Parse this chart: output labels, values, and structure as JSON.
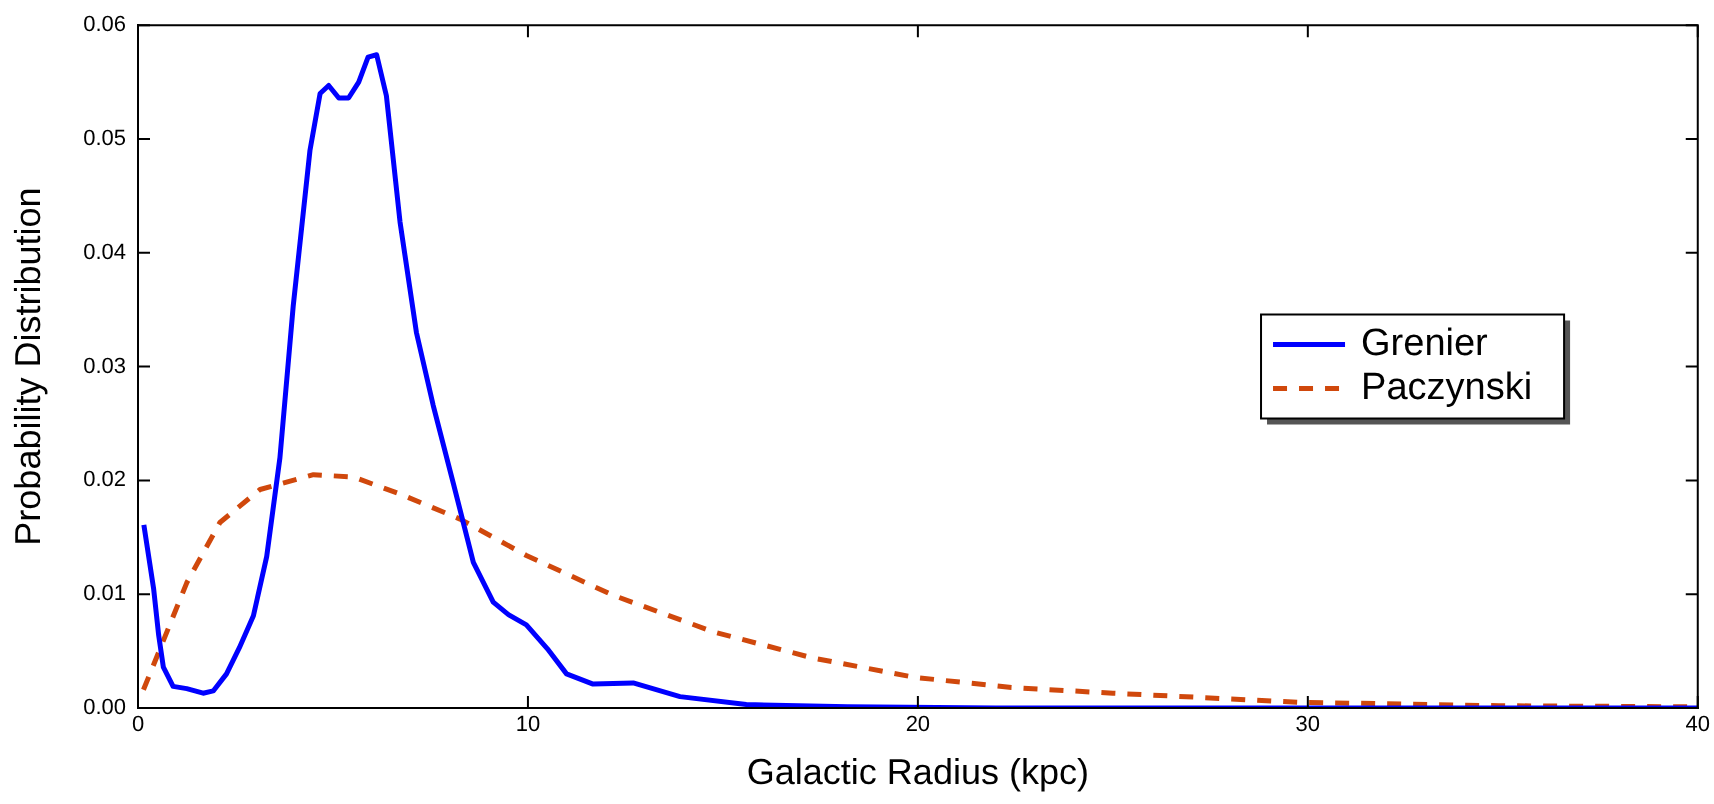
{
  "chart_data": {
    "type": "line",
    "xlabel": "Galactic Radius (kpc)",
    "ylabel": "Probability Distribution",
    "xlim": [
      0,
      40
    ],
    "xticks": [
      0,
      10,
      20,
      30,
      40
    ],
    "ylim": [
      0,
      0.06
    ],
    "yticks": [
      {
        "value": 0,
        "label": "0.00"
      },
      {
        "value": 0.01,
        "label": "0.01"
      },
      {
        "value": 0.02,
        "label": "0.02"
      },
      {
        "value": 0.03,
        "label": "0.03"
      },
      {
        "value": 0.04,
        "label": "0.04"
      },
      {
        "value": 0.05,
        "label": "0.05"
      },
      {
        "value": 0.06,
        "label": "0.06"
      }
    ],
    "grid": false,
    "legend": "right",
    "marker": "none",
    "series": [
      {
        "name": "Grenier",
        "color": "#0000ff",
        "line_style": "solid",
        "x": [
          0.15,
          0.4,
          0.53,
          0.65,
          0.9,
          1.25,
          1.67,
          1.93,
          2.27,
          2.6,
          2.96,
          3.3,
          3.64,
          3.98,
          4.41,
          4.67,
          4.89,
          5.15,
          5.4,
          5.66,
          5.9,
          6.12,
          6.37,
          6.72,
          7.14,
          7.57,
          8.09,
          8.6,
          9.11,
          9.5,
          9.96,
          10.5,
          10.99,
          11.67,
          12.7,
          13.9,
          15.6,
          18.2,
          22,
          30,
          40
        ],
        "values": [
          0.0161,
          0.0105,
          0.0064,
          0.0036,
          0.0019,
          0.0017,
          0.0013,
          0.0015,
          0.003,
          0.0053,
          0.0081,
          0.0133,
          0.022,
          0.0353,
          0.049,
          0.054,
          0.0547,
          0.0536,
          0.0536,
          0.055,
          0.0572,
          0.0574,
          0.0538,
          0.0427,
          0.033,
          0.0266,
          0.0197,
          0.0128,
          0.0093,
          0.0082,
          0.0073,
          0.0052,
          0.003,
          0.0021,
          0.0022,
          0.001,
          0.0003,
          0.0001,
          0,
          0,
          0
        ]
      },
      {
        "name": "Paczynski",
        "color": "#d0480c",
        "line_style": "dashed",
        "x": [
          0.14,
          1.25,
          2.1,
          3.13,
          4.5,
          5.52,
          6.72,
          8.26,
          9.96,
          12.19,
          14.75,
          17.3,
          19.9,
          22.4,
          25.0,
          29.8,
          34.9,
          40
        ],
        "values": [
          0.0016,
          0.011,
          0.0163,
          0.0192,
          0.0205,
          0.0203,
          0.0188,
          0.0166,
          0.0134,
          0.0099,
          0.0067,
          0.0044,
          0.0027,
          0.0018,
          0.0013,
          0.0005,
          0.0002,
          0.0001
        ]
      }
    ]
  }
}
